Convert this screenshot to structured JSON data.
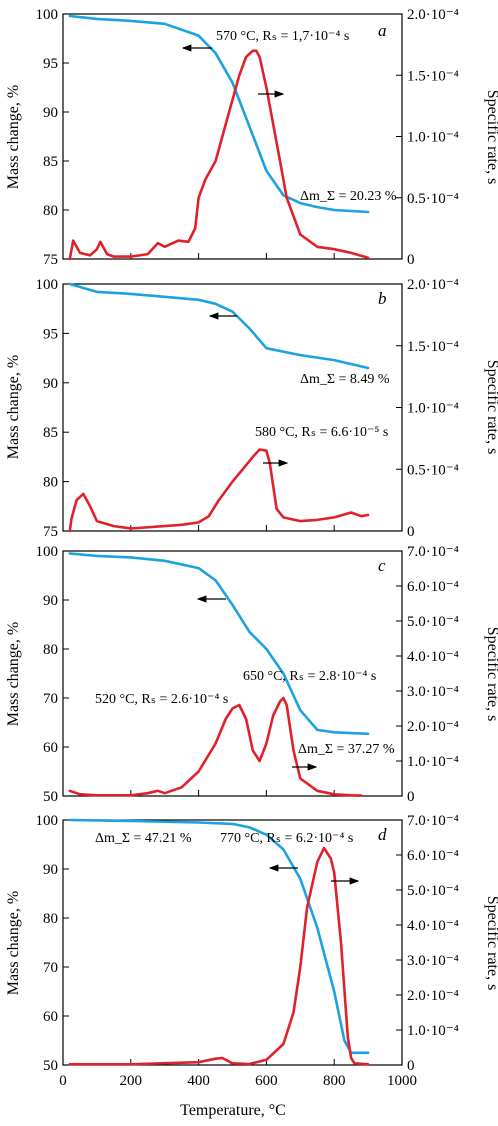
{
  "x_axis": {
    "label": "Temperature, °C",
    "ticks": [
      "0",
      "200",
      "400",
      "600",
      "800",
      "1000"
    ]
  },
  "y_left_label": "Mass change, %",
  "y_right_label": "Specific rate, s",
  "colors": {
    "mass": "#1aa3e0",
    "rate": "#e0202a",
    "axis": "#000000"
  },
  "chart_data": [
    {
      "type": "line",
      "panel": "a",
      "xlim": [
        0,
        1000
      ],
      "ylim_left": [
        75,
        100
      ],
      "ylim_right": [
        0,
        0.0002
      ],
      "left_ticks": [
        "100",
        "95",
        "90",
        "85",
        "80",
        "75"
      ],
      "right_ticks": [
        "2.0·10⁻⁴",
        "1.5·10⁻⁴",
        "1.0·10⁻⁴",
        "0.5·10⁻⁴",
        "0"
      ],
      "annotations": {
        "peak": "570 °C, Rₛ = 1,7·10⁻⁴ s",
        "total": "Δm_Σ = 20.23 %"
      },
      "series": [
        {
          "axis": "left",
          "x": [
            20,
            100,
            200,
            300,
            400,
            450,
            500,
            550,
            600,
            650,
            700,
            750,
            800,
            900
          ],
          "y": [
            99.8,
            99.5,
            99.3,
            99.0,
            97.8,
            96.0,
            93.0,
            88.5,
            84.0,
            81.5,
            80.7,
            80.3,
            80.0,
            79.8
          ]
        },
        {
          "axis": "right",
          "x": [
            20,
            30,
            50,
            80,
            100,
            110,
            130,
            150,
            200,
            250,
            280,
            300,
            340,
            370,
            390,
            400,
            420,
            450,
            480,
            500,
            520,
            540,
            560,
            570,
            580,
            600,
            620,
            640,
            660,
            700,
            750,
            800,
            850,
            900
          ],
          "y": [
            0.0,
            1.5e-05,
            5e-06,
            3e-06,
            8e-06,
            1.4e-05,
            4e-06,
            2e-06,
            2e-06,
            4e-06,
            1.3e-05,
            1e-05,
            1.5e-05,
            1.4e-05,
            2.5e-05,
            5e-05,
            6.5e-05,
            8e-05,
            0.00011,
            0.00013,
            0.00015,
            0.000165,
            0.00017,
            0.00017,
            0.000165,
            0.00014,
            0.00011,
            8e-05,
            5e-05,
            2e-05,
            1e-05,
            8e-06,
            5e-06,
            1e-06
          ]
        }
      ]
    },
    {
      "type": "line",
      "panel": "b",
      "xlim": [
        0,
        1000
      ],
      "ylim_left": [
        75,
        100
      ],
      "ylim_right": [
        0,
        0.0002
      ],
      "left_ticks": [
        "100",
        "95",
        "90",
        "85",
        "80",
        "75"
      ],
      "right_ticks": [
        "2.0·10⁻⁴",
        "1.5·10⁻⁴",
        "1.0·10⁻⁴",
        "0.5·10⁻⁴",
        "0"
      ],
      "annotations": {
        "peak": "580 °C, Rₛ = 6.6·10⁻⁵ s",
        "total": "Δm_Σ = 8.49 %"
      },
      "series": [
        {
          "axis": "left",
          "x": [
            20,
            100,
            200,
            300,
            400,
            450,
            500,
            550,
            600,
            700,
            800,
            900
          ],
          "y": [
            100,
            99.2,
            99.0,
            98.7,
            98.4,
            98.0,
            97.2,
            95.5,
            93.5,
            92.8,
            92.3,
            91.5
          ]
        },
        {
          "axis": "right",
          "x": [
            20,
            25,
            40,
            60,
            80,
            100,
            150,
            200,
            300,
            350,
            400,
            430,
            460,
            500,
            530,
            560,
            580,
            600,
            610,
            630,
            650,
            700,
            750,
            800,
            850,
            880,
            900
          ],
          "y": [
            0,
            1e-05,
            2.5e-05,
            3e-05,
            2e-05,
            8e-06,
            4e-06,
            2e-06,
            4e-06,
            5e-06,
            7e-06,
            1.2e-05,
            2.5e-05,
            4e-05,
            5e-05,
            6e-05,
            6.6e-05,
            6.5e-05,
            5.5e-05,
            1.8e-05,
            1.1e-05,
            8e-06,
            9e-06,
            1.1e-05,
            1.5e-05,
            1.2e-05,
            1.3e-05
          ]
        }
      ]
    },
    {
      "type": "line",
      "panel": "c",
      "xlim": [
        0,
        1000
      ],
      "ylim_left": [
        50,
        100
      ],
      "ylim_right": [
        0,
        0.0007
      ],
      "left_ticks": [
        "100",
        "90",
        "80",
        "70",
        "60",
        "50"
      ],
      "right_ticks": [
        "7.0·10⁻⁴",
        "6.0·10⁻⁴",
        "5.0·10⁻⁴",
        "4.0·10⁻⁴",
        "3.0·10⁻⁴",
        "2.0·10⁻⁴",
        "1.0·10⁻⁴",
        "0"
      ],
      "annotations": {
        "peak1": "520 °C, Rₛ = 2.6·10⁻⁴ s",
        "peak2": "650 °C, Rₛ = 2.8·10⁻⁴ s",
        "total": "Δm_Σ = 37.27 %"
      },
      "series": [
        {
          "axis": "left",
          "x": [
            20,
            100,
            200,
            300,
            400,
            450,
            500,
            550,
            600,
            650,
            700,
            750,
            800,
            900
          ],
          "y": [
            99.5,
            99.0,
            98.7,
            98.0,
            96.5,
            94.0,
            89.0,
            83.5,
            80.0,
            75.0,
            67.5,
            63.5,
            63.0,
            62.7
          ]
        },
        {
          "axis": "right",
          "x": [
            20,
            50,
            100,
            200,
            250,
            280,
            300,
            350,
            400,
            450,
            480,
            500,
            520,
            540,
            560,
            580,
            600,
            620,
            640,
            650,
            660,
            680,
            700,
            750,
            800,
            850,
            880
          ],
          "y": [
            1.5e-05,
            5e-06,
            2e-06,
            2e-06,
            8e-06,
            1.5e-05,
            8e-06,
            2.5e-05,
            7e-05,
            0.00015,
            0.00022,
            0.00025,
            0.00026,
            0.00022,
            0.00013,
            0.0001,
            0.00015,
            0.00023,
            0.00027,
            0.00028,
            0.00026,
            0.00013,
            5e-05,
            1.5e-05,
            5e-06,
            2e-06,
            1e-06
          ]
        }
      ]
    },
    {
      "type": "line",
      "panel": "d",
      "xlim": [
        0,
        1000
      ],
      "ylim_left": [
        50,
        100
      ],
      "ylim_right": [
        0,
        0.0007
      ],
      "left_ticks": [
        "100",
        "90",
        "80",
        "70",
        "60",
        "50"
      ],
      "right_ticks": [
        "7.0·10⁻⁴",
        "6.0·10⁻⁴",
        "5.0·10⁻⁴",
        "4.0·10⁻⁴",
        "3.0·10⁻⁴",
        "2.0·10⁻⁴",
        "1.0·10⁻⁴",
        "0"
      ],
      "annotations": {
        "peak": "770 °C, Rₛ = 6.2·10⁻⁴ s",
        "total": "Δm_Σ = 47.21 %"
      },
      "series": [
        {
          "axis": "left",
          "x": [
            20,
            200,
            400,
            500,
            550,
            600,
            650,
            700,
            750,
            800,
            830,
            850,
            870,
            900
          ],
          "y": [
            100,
            99.8,
            99.5,
            99.2,
            98.5,
            97.0,
            94.0,
            88.0,
            78.0,
            65.0,
            55.0,
            52.5,
            52.5,
            52.5
          ]
        },
        {
          "axis": "right",
          "x": [
            20,
            200,
            400,
            450,
            470,
            500,
            550,
            600,
            650,
            680,
            700,
            720,
            750,
            770,
            790,
            800,
            820,
            840,
            850,
            860,
            900
          ],
          "y": [
            2e-06,
            2e-06,
            8e-06,
            1.8e-05,
            2e-05,
            5e-06,
            3e-06,
            1.5e-05,
            6e-05,
            0.00015,
            0.00028,
            0.00045,
            0.00058,
            0.00062,
            0.00059,
            0.00055,
            0.00035,
            8e-05,
            2e-05,
            5e-06,
            2e-06
          ]
        }
      ]
    }
  ]
}
